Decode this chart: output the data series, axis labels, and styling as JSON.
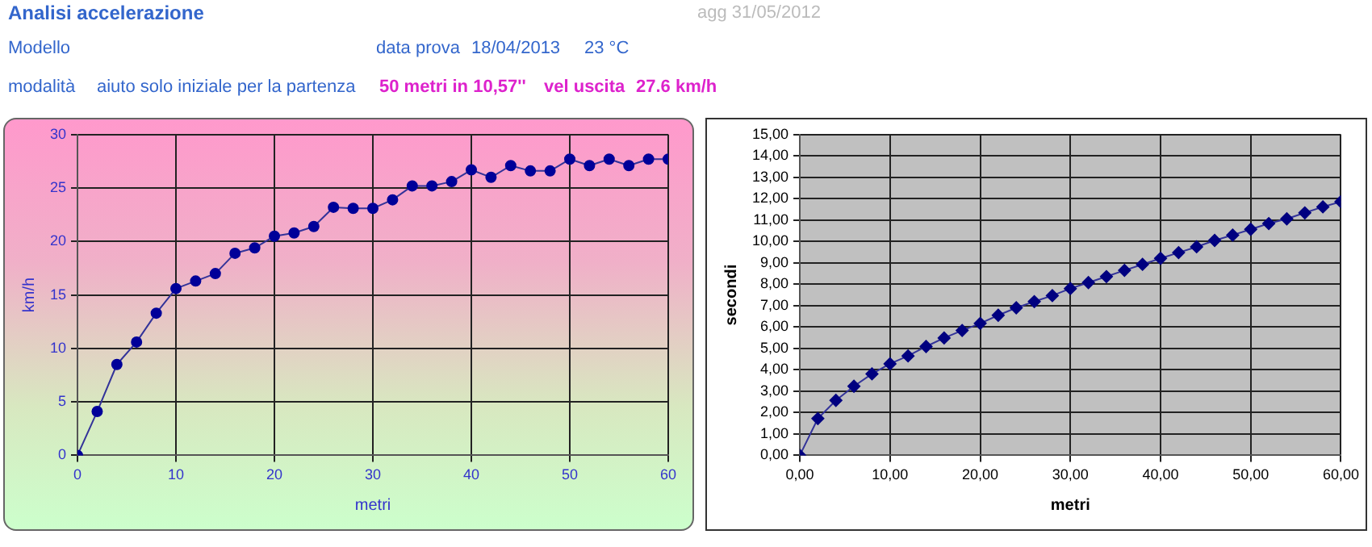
{
  "chart_data": [
    {
      "type": "line",
      "title": "Analisi accelerazione",
      "annotations": [
        "agg 31/05/2012",
        "Modello",
        "data prova",
        "18/04/2013",
        "23 °C",
        "modalità",
        "aiuto solo iniziale per la partenza",
        "50 metri in 10,57''",
        "vel uscita",
        "27.6 km/h"
      ],
      "xlabel": "metri",
      "ylabel": "km/h",
      "x": [
        0,
        2,
        4,
        6,
        8,
        10,
        12,
        14,
        16,
        18,
        20,
        22,
        24,
        26,
        28,
        30,
        32,
        34,
        36,
        38,
        40,
        42,
        44,
        46,
        48,
        50,
        52,
        54,
        56,
        58,
        60
      ],
      "series": [
        {
          "color": "#000099",
          "values": [
            0,
            4.1,
            8.5,
            10.6,
            13.3,
            15.6,
            16.3,
            17.0,
            18.9,
            19.4,
            20.5,
            20.8,
            21.4,
            23.2,
            23.1,
            23.1,
            23.9,
            25.2,
            25.2,
            25.6,
            26.7,
            26.0,
            27.1,
            26.6,
            26.6,
            27.7,
            27.1,
            27.7,
            27.1,
            27.7,
            27.7
          ]
        }
      ],
      "xlim": [
        0,
        60
      ],
      "xticks": [
        0,
        10,
        20,
        30,
        40,
        50,
        60
      ],
      "ylim": [
        0,
        30
      ],
      "yticks": [
        0,
        5,
        10,
        15,
        20,
        25,
        30
      ],
      "grid": true,
      "legend": false,
      "marker": "circle",
      "line_style": "solid"
    },
    {
      "type": "line",
      "xlabel": "metri",
      "ylabel": "secondi",
      "x": [
        0,
        2,
        4,
        6,
        8,
        10,
        12,
        14,
        16,
        18,
        20,
        22,
        24,
        26,
        28,
        30,
        32,
        34,
        36,
        38,
        40,
        42,
        44,
        46,
        48,
        50,
        52,
        54,
        56,
        58,
        60
      ],
      "series": [
        {
          "color": "#000080",
          "values": [
            0,
            1.72,
            2.57,
            3.23,
            3.81,
            4.28,
            4.65,
            5.09,
            5.49,
            5.84,
            6.17,
            6.55,
            6.9,
            7.19,
            7.47,
            7.8,
            8.08,
            8.36,
            8.65,
            8.93,
            9.21,
            9.48,
            9.75,
            10.05,
            10.3,
            10.57,
            10.84,
            11.06,
            11.34,
            11.62,
            11.86
          ]
        }
      ],
      "xlim": [
        0,
        60
      ],
      "xticks": [
        {
          "value": 0,
          "label": "0,00"
        },
        {
          "value": 10,
          "label": "10,00"
        },
        {
          "value": 20,
          "label": "20,00"
        },
        {
          "value": 30,
          "label": "30,00"
        },
        {
          "value": 40,
          "label": "40,00"
        },
        {
          "value": 50,
          "label": "50,00"
        },
        {
          "value": 60,
          "label": "60,00"
        }
      ],
      "ylim": [
        0,
        15
      ],
      "yticks": [
        {
          "value": 0,
          "label": "0,00"
        },
        {
          "value": 1,
          "label": "1,00"
        },
        {
          "value": 2,
          "label": "2,00"
        },
        {
          "value": 3,
          "label": "3,00"
        },
        {
          "value": 4,
          "label": "4,00"
        },
        {
          "value": 5,
          "label": "5,00"
        },
        {
          "value": 6,
          "label": "6,00"
        },
        {
          "value": 7,
          "label": "7,00"
        },
        {
          "value": 8,
          "label": "8,00"
        },
        {
          "value": 9,
          "label": "9,00"
        },
        {
          "value": 10,
          "label": "10,00"
        },
        {
          "value": 11,
          "label": "11,00"
        },
        {
          "value": 12,
          "label": "12,00"
        },
        {
          "value": 13,
          "label": "13,00"
        },
        {
          "value": 14,
          "label": "14,00"
        },
        {
          "value": 15,
          "label": "15,00"
        }
      ],
      "grid": true,
      "legend": false,
      "marker": "diamond",
      "line_style": "solid"
    }
  ]
}
